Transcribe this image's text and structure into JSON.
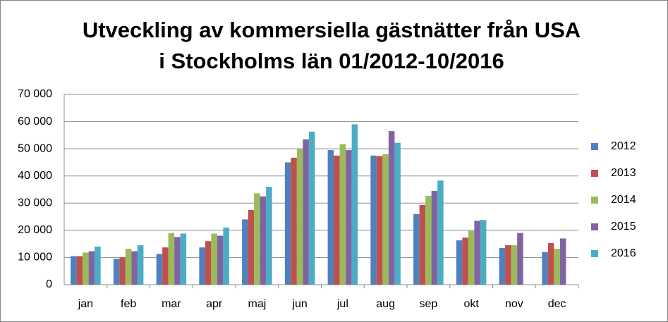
{
  "chart_data": {
    "type": "bar",
    "title": [
      "Utveckling av kommersiella gästnätter från USA",
      "i Stockholms län 01/2012-10/2016"
    ],
    "categories": [
      "jan",
      "feb",
      "mar",
      "apr",
      "maj",
      "jun",
      "jul",
      "aug",
      "sep",
      "okt",
      "nov",
      "dec"
    ],
    "series": [
      {
        "name": "2012",
        "color": "#4f81bd",
        "values": [
          10500,
          9500,
          11300,
          13700,
          24000,
          45000,
          49500,
          47500,
          26000,
          16300,
          13500,
          12000
        ]
      },
      {
        "name": "2013",
        "color": "#c0504d",
        "values": [
          10500,
          10000,
          13700,
          16000,
          27500,
          46700,
          47500,
          47300,
          29300,
          17300,
          14500,
          15300
        ]
      },
      {
        "name": "2014",
        "color": "#9bbb59",
        "values": [
          11800,
          13200,
          19000,
          18800,
          33600,
          50000,
          51700,
          48000,
          32700,
          19800,
          14500,
          13200
        ]
      },
      {
        "name": "2015",
        "color": "#8064a2",
        "values": [
          12300,
          12300,
          17500,
          18000,
          32500,
          53500,
          49500,
          56500,
          34500,
          23500,
          19000,
          17000
        ]
      },
      {
        "name": "2016",
        "color": "#4bacc6",
        "values": [
          14000,
          14500,
          18800,
          21000,
          36000,
          56300,
          59000,
          52200,
          38300,
          23800,
          null,
          null
        ]
      }
    ],
    "ylim": [
      0,
      70000
    ],
    "yticks": [
      0,
      {
        "value": 10000,
        "label": "10 000"
      },
      {
        "value": 20000,
        "label": "20 000"
      },
      {
        "value": 30000,
        "label": "30 000"
      },
      {
        "value": 40000,
        "label": "40 000"
      },
      {
        "value": 50000,
        "label": "50 000"
      },
      {
        "value": 60000,
        "label": "60 000"
      },
      {
        "value": 70000,
        "label": "70 000"
      }
    ],
    "grid": true,
    "legend": "right"
  }
}
